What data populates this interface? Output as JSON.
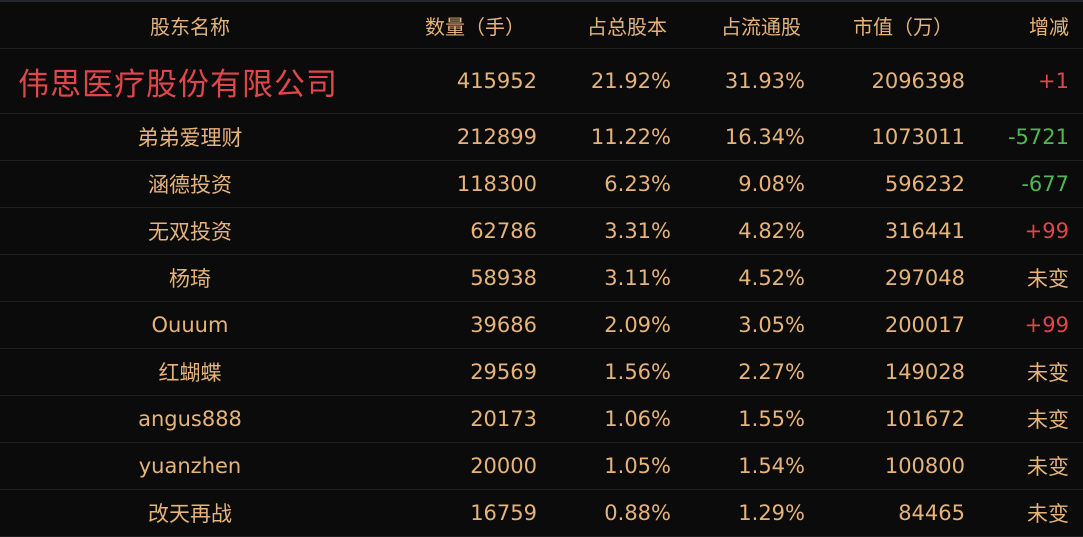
{
  "headers": {
    "name": "股东名称",
    "qty": "数量（手）",
    "pct": "占总股本",
    "flow": "占流通股",
    "mv": "市值（万）",
    "chg": "增减"
  },
  "colors": {
    "text": "#e6b47a",
    "up": "#e0464a",
    "down": "#4fb852",
    "background": "#0b0b0b"
  },
  "rows": [
    {
      "name": "伟思医疗股份有限公司",
      "qty": "415952",
      "pct": "21.92%",
      "flow": "31.93%",
      "mv": "2096398",
      "chg": "+1",
      "dir": "up"
    },
    {
      "name": "弟弟爱理财",
      "qty": "212899",
      "pct": "11.22%",
      "flow": "16.34%",
      "mv": "1073011",
      "chg": "-5721",
      "dir": "down"
    },
    {
      "name": "涵德投资",
      "qty": "118300",
      "pct": "6.23%",
      "flow": "9.08%",
      "mv": "596232",
      "chg": "-677",
      "dir": "down"
    },
    {
      "name": "无双投资",
      "qty": "62786",
      "pct": "3.31%",
      "flow": "4.82%",
      "mv": "316441",
      "chg": "+99",
      "dir": "up"
    },
    {
      "name": "杨琦",
      "qty": "58938",
      "pct": "3.11%",
      "flow": "4.52%",
      "mv": "297048",
      "chg": "未变",
      "dir": "flat"
    },
    {
      "name": "Ouuum",
      "qty": "39686",
      "pct": "2.09%",
      "flow": "3.05%",
      "mv": "200017",
      "chg": "+99",
      "dir": "up"
    },
    {
      "name": "红蝴蝶",
      "qty": "29569",
      "pct": "1.56%",
      "flow": "2.27%",
      "mv": "149028",
      "chg": "未变",
      "dir": "flat"
    },
    {
      "name": "angus888",
      "qty": "20173",
      "pct": "1.06%",
      "flow": "1.55%",
      "mv": "101672",
      "chg": "未变",
      "dir": "flat"
    },
    {
      "name": "yuanzhen",
      "qty": "20000",
      "pct": "1.05%",
      "flow": "1.54%",
      "mv": "100800",
      "chg": "未变",
      "dir": "flat"
    },
    {
      "name": "改天再战",
      "qty": "16759",
      "pct": "0.88%",
      "flow": "1.29%",
      "mv": "84465",
      "chg": "未变",
      "dir": "flat"
    }
  ]
}
